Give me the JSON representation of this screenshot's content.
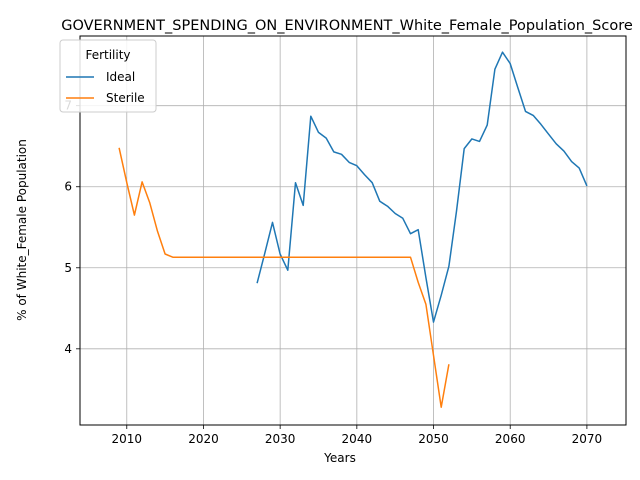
{
  "chart_data": {
    "type": "line",
    "title": "GOVERNMENT_SPENDING_ON_ENVIRONMENT_White_Female_Population_Score",
    "xlabel": "Years",
    "ylabel": "% of White_Female Population",
    "xlim": [
      2003.9,
      2075.1
    ],
    "ylim": [
      3.06,
      7.86
    ],
    "xticks": [
      2010,
      2020,
      2030,
      2040,
      2050,
      2060,
      2070
    ],
    "yticks": [
      4,
      5,
      6,
      7
    ],
    "grid": true,
    "legend": {
      "title": "Fertility",
      "position": "top-left"
    },
    "series": [
      {
        "name": "Ideal",
        "color": "#1f77b4",
        "x": [
          2027,
          2028,
          2029,
          2030,
          2031,
          2032,
          2033,
          2034,
          2035,
          2036,
          2037,
          2038,
          2039,
          2040,
          2041,
          2042,
          2043,
          2044,
          2045,
          2046,
          2047,
          2048,
          2049,
          2050,
          2051,
          2052,
          2053,
          2054,
          2055,
          2056,
          2057,
          2058,
          2059,
          2060,
          2061,
          2062,
          2063,
          2064,
          2065,
          2066,
          2067,
          2068,
          2069,
          2070
        ],
        "y": [
          4.81,
          5.18,
          5.56,
          5.17,
          4.97,
          6.05,
          5.77,
          6.87,
          6.67,
          6.6,
          6.43,
          6.4,
          6.3,
          6.26,
          6.15,
          6.05,
          5.82,
          5.76,
          5.67,
          5.61,
          5.42,
          5.47,
          4.88,
          4.33,
          4.66,
          5.02,
          5.7,
          6.47,
          6.59,
          6.56,
          6.76,
          7.45,
          7.66,
          7.52,
          7.22,
          6.93,
          6.88,
          6.77,
          6.65,
          6.53,
          6.44,
          6.31,
          6.23,
          6.01
        ]
      },
      {
        "name": "Sterile",
        "color": "#ff7f0e",
        "x": [
          2009,
          2010,
          2011,
          2012,
          2013,
          2014,
          2015,
          2016,
          2017,
          2018,
          2019,
          2020,
          2021,
          2022,
          2023,
          2024,
          2025,
          2026,
          2027,
          2028,
          2029,
          2030,
          2031,
          2032,
          2033,
          2034,
          2035,
          2036,
          2037,
          2038,
          2039,
          2040,
          2041,
          2042,
          2043,
          2044,
          2045,
          2046,
          2047,
          2048,
          2049,
          2050,
          2051,
          2052
        ],
        "y": [
          6.48,
          6.05,
          5.65,
          6.06,
          5.8,
          5.45,
          5.17,
          5.13,
          5.13,
          5.13,
          5.13,
          5.13,
          5.13,
          5.13,
          5.13,
          5.13,
          5.13,
          5.13,
          5.13,
          5.13,
          5.13,
          5.13,
          5.13,
          5.13,
          5.13,
          5.13,
          5.13,
          5.13,
          5.13,
          5.13,
          5.13,
          5.13,
          5.13,
          5.13,
          5.13,
          5.13,
          5.13,
          5.13,
          5.13,
          4.82,
          4.55,
          3.92,
          3.28,
          3.81
        ]
      }
    ]
  }
}
